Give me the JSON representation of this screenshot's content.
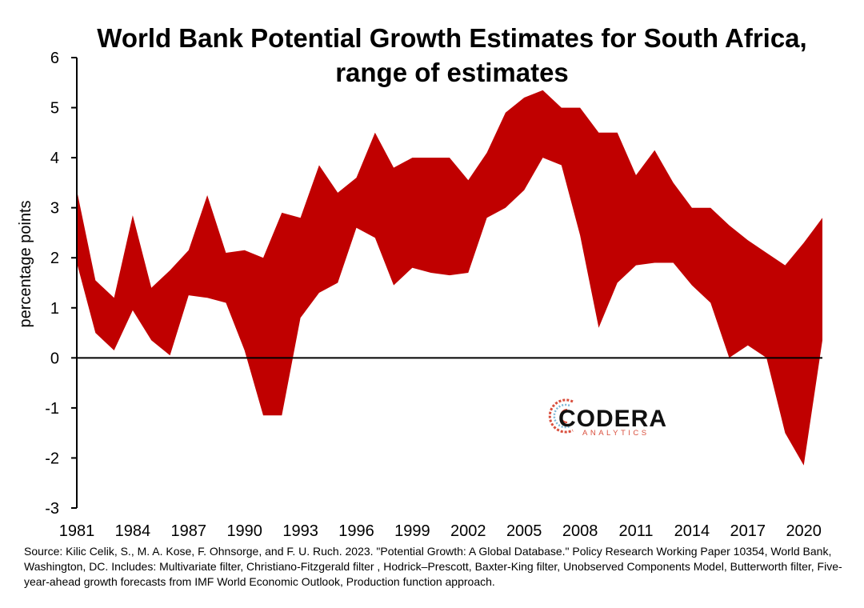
{
  "chart_data": {
    "type": "area",
    "title": "World Bank Potential Growth Estimates for South Africa, range of estimates",
    "ylabel": "percentage points",
    "xlabel": "",
    "ylim": [
      -3,
      6
    ],
    "yticks": [
      "6",
      "5",
      "4",
      "3",
      "2",
      "1",
      "0",
      "-1",
      "-2",
      "-3"
    ],
    "xticks": [
      "1981",
      "1984",
      "1987",
      "1990",
      "1993",
      "1996",
      "1999",
      "2002",
      "2005",
      "2008",
      "2011",
      "2014",
      "2017",
      "2020"
    ],
    "grid": false,
    "fill_color": "#c00000",
    "x": [
      1981,
      1982,
      1983,
      1984,
      1985,
      1986,
      1987,
      1988,
      1989,
      1990,
      1991,
      1992,
      1993,
      1994,
      1995,
      1996,
      1997,
      1998,
      1999,
      2000,
      2001,
      2002,
      2003,
      2004,
      2005,
      2006,
      2007,
      2008,
      2009,
      2010,
      2011,
      2012,
      2013,
      2014,
      2015,
      2016,
      2017,
      2018,
      2019,
      2020,
      2021
    ],
    "series": [
      {
        "values": [
          3.35,
          1.55,
          1.2,
          2.85,
          1.4,
          1.75,
          2.15,
          3.25,
          2.1,
          2.15,
          2.0,
          2.9,
          2.8,
          3.85,
          3.3,
          3.6,
          4.5,
          3.8,
          4.0,
          4.0,
          4.0,
          3.55,
          4.1,
          4.9,
          5.2,
          5.35,
          5.0,
          5.0,
          4.5,
          4.5,
          3.65,
          4.15,
          3.5,
          3.0,
          3.0,
          2.65,
          2.35,
          2.1,
          1.85,
          2.3,
          2.8
        ]
      },
      {
        "values": [
          1.9,
          0.5,
          0.15,
          0.95,
          0.35,
          0.05,
          1.25,
          1.2,
          1.1,
          0.15,
          -1.15,
          -1.15,
          0.8,
          1.3,
          1.5,
          2.6,
          2.4,
          1.45,
          1.8,
          1.7,
          1.65,
          1.7,
          2.8,
          3.0,
          3.35,
          4.0,
          3.85,
          2.45,
          0.6,
          1.5,
          1.85,
          1.9,
          1.9,
          1.45,
          1.1,
          0.0,
          0.25,
          0.0,
          -1.5,
          -2.15,
          0.35
        ]
      }
    ]
  },
  "source": "Source: Kilic Celik, S., M. A. Kose, F. Ohnsorge, and F. U. Ruch. 2023. \"Potential Growth: A Global Database.\" Policy Research Working Paper 10354, World Bank, Washington, DC. Includes: Multivariate filter, Christiano-Fitzgerald filter , Hodrick–Prescott, Baxter-King filter, Unobserved Components Model, Butterworth filter, Five-year-ahead growth forecasts from IMF World Economic Outlook, Production function approach.",
  "logo": {
    "name": "CODERA",
    "sub": "ANALYTICS"
  }
}
